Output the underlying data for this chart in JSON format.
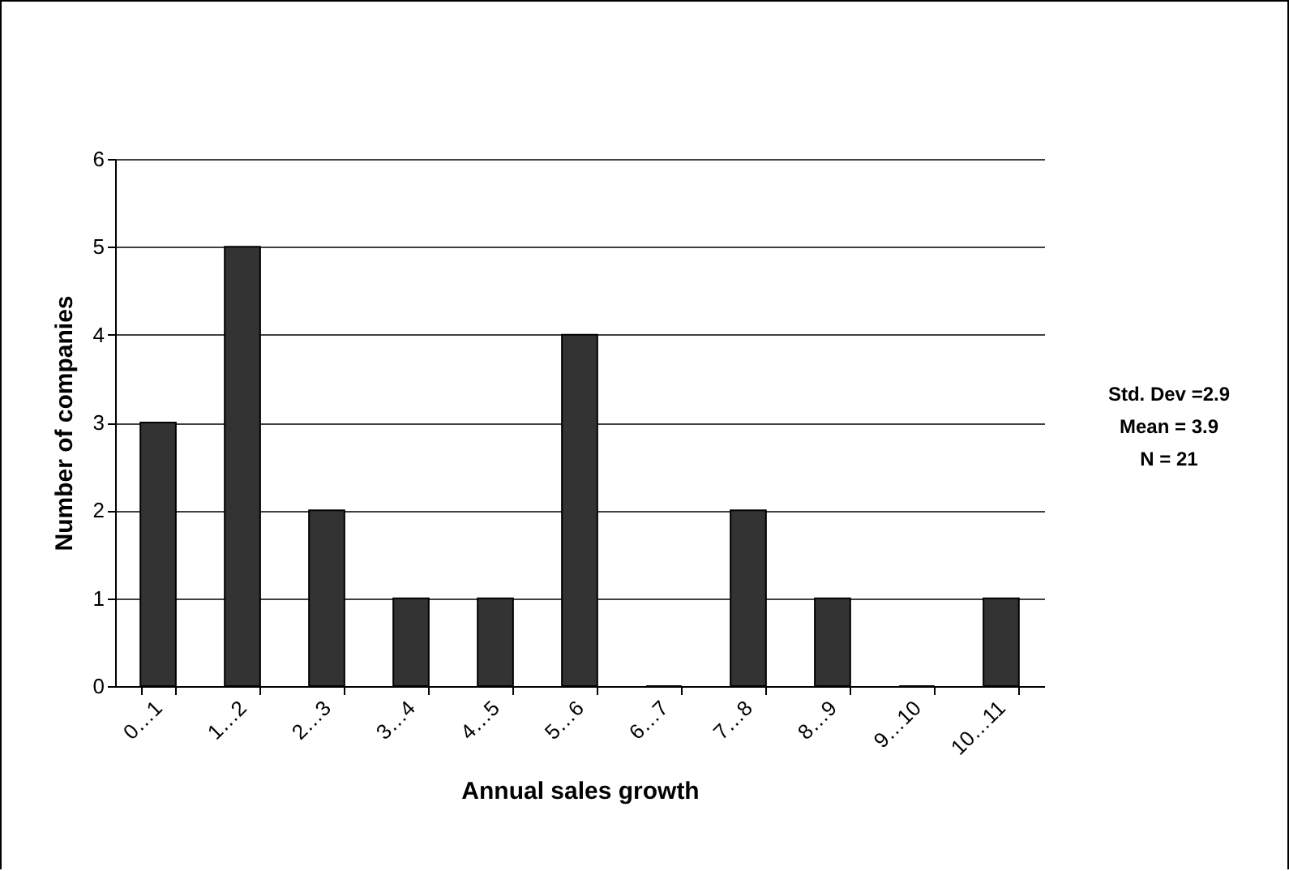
{
  "chart_data": {
    "type": "bar",
    "xlabel": "Annual sales growth",
    "ylabel": "Number of companies",
    "categories": [
      "0…1",
      "1…2",
      "2…3",
      "3…4",
      "4…5",
      "5…6",
      "6…7",
      "7…8",
      "8…9",
      "9…10",
      "10…11"
    ],
    "values": [
      3,
      5,
      2,
      1,
      1,
      4,
      0,
      2,
      1,
      0,
      1
    ],
    "color": "#333333",
    "ylim": [
      0,
      6
    ],
    "yticks": [
      0,
      1,
      2,
      3,
      4,
      5,
      6
    ],
    "grid": "y",
    "annotations": [
      "Std. Dev =2.9",
      "Mean = 3.9",
      "N = 21"
    ]
  }
}
